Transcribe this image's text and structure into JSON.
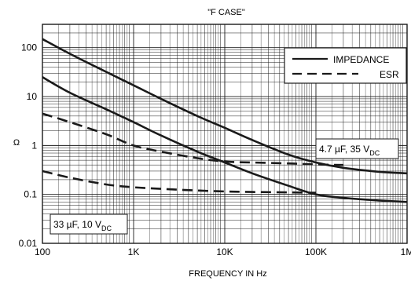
{
  "chart_data": {
    "type": "line",
    "title": "\"F CASE\"",
    "xlabel": "FREQUENCY IN Hz",
    "ylabel": "Ω",
    "x_scale": "log",
    "y_scale": "log",
    "xlim": [
      100,
      1000000
    ],
    "ylim": [
      0.01,
      300
    ],
    "x_ticks": [
      {
        "value": 100,
        "label": "100"
      },
      {
        "value": 1000,
        "label": "1K"
      },
      {
        "value": 10000,
        "label": "10K"
      },
      {
        "value": 100000,
        "label": "100K"
      },
      {
        "value": 1000000,
        "label": "1M"
      }
    ],
    "y_ticks": [
      {
        "value": 0.01,
        "label": "0.01"
      },
      {
        "value": 0.1,
        "label": "0.1"
      },
      {
        "value": 1,
        "label": "1"
      },
      {
        "value": 10,
        "label": "10"
      },
      {
        "value": 100,
        "label": "100"
      }
    ],
    "grid": true,
    "legend": {
      "position": "top-right",
      "entries": [
        {
          "label": "IMPEDANCE",
          "style": "solid"
        },
        {
          "label": "ESR",
          "style": "dashed"
        }
      ]
    },
    "annotations": [
      {
        "id": "a47",
        "text": "4.7 µF, 35 V",
        "sub": "DC",
        "position": "right"
      },
      {
        "id": "a33",
        "text": "33 µF, 10 V",
        "sub": "DC",
        "position": "bottom-left"
      }
    ],
    "series": [
      {
        "id": "imp47",
        "group": "4.7 µF, 35 V DC",
        "kind": "impedance",
        "style": "solid",
        "x": [
          100,
          200,
          500,
          1000,
          2000,
          5000,
          10000,
          20000,
          50000,
          100000,
          200000,
          500000,
          1000000
        ],
        "y": [
          150,
          75,
          32,
          17,
          9,
          4,
          2.3,
          1.3,
          0.65,
          0.45,
          0.35,
          0.29,
          0.27
        ]
      },
      {
        "id": "imp33",
        "group": "33 µF, 10 V DC",
        "kind": "impedance",
        "style": "solid",
        "x": [
          100,
          200,
          500,
          1000,
          2000,
          5000,
          10000,
          20000,
          50000,
          100000,
          200000,
          500000,
          1000000
        ],
        "y": [
          25,
          12,
          5.5,
          3,
          1.6,
          0.75,
          0.45,
          0.27,
          0.15,
          0.1,
          0.085,
          0.075,
          0.07
        ]
      },
      {
        "id": "esr47",
        "group": "4.7 µF, 35 V DC",
        "kind": "esr",
        "style": "dashed",
        "x": [
          100,
          200,
          500,
          1000,
          2000,
          5000,
          10000,
          20000,
          50000,
          100000,
          200000
        ],
        "y": [
          4.5,
          3,
          1.7,
          1.0,
          0.75,
          0.55,
          0.47,
          0.45,
          0.43,
          0.41,
          0.4
        ]
      },
      {
        "id": "esr33",
        "group": "33 µF, 10 V DC",
        "kind": "esr",
        "style": "dashed",
        "x": [
          100,
          200,
          500,
          1000,
          2000,
          5000,
          10000,
          20000,
          50000,
          100000
        ],
        "y": [
          0.3,
          0.22,
          0.16,
          0.14,
          0.13,
          0.12,
          0.115,
          0.112,
          0.11,
          0.108
        ]
      }
    ],
    "colors": {
      "line": "#1a1a1a",
      "grid": "#1a1a1a",
      "background": "#ffffff"
    }
  }
}
